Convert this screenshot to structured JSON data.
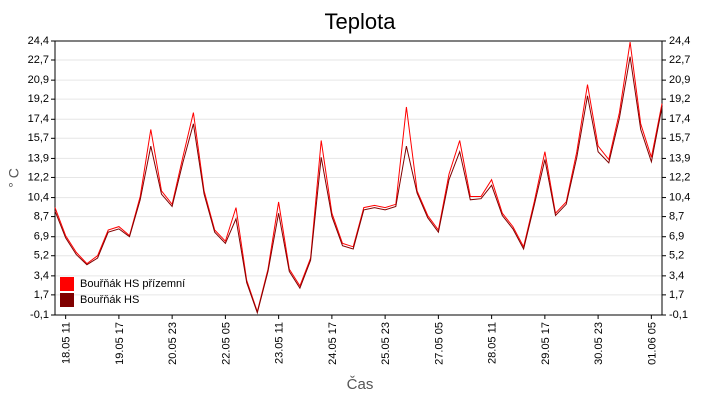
{
  "chart_data": {
    "type": "line",
    "title": "Teplota",
    "xlabel": "Čas",
    "ylabel": "° C",
    "x": [
      "18.05 05",
      "18.05 11",
      "18.05 17",
      "18.05 23",
      "19.05 05",
      "19.05 11",
      "19.05 17",
      "19.05 23",
      "20.05 05",
      "20.05 11",
      "20.05 17",
      "20.05 23",
      "21.05 05",
      "21.05 11",
      "21.05 17",
      "21.05 23",
      "22.05 05",
      "22.05 11",
      "22.05 17",
      "22.05 23",
      "23.05 05",
      "23.05 11",
      "23.05 17",
      "23.05 23",
      "24.05 05",
      "24.05 11",
      "24.05 17",
      "24.05 23",
      "25.05 05",
      "25.05 11",
      "25.05 17",
      "25.05 23",
      "26.05 05",
      "26.05 11",
      "26.05 17",
      "26.05 23",
      "27.05 05",
      "27.05 11",
      "27.05 17",
      "27.05 23",
      "28.05 05",
      "28.05 11",
      "28.05 17",
      "28.05 23",
      "29.05 05",
      "29.05 11",
      "29.05 17",
      "29.05 23",
      "30.05 05",
      "30.05 11",
      "30.05 17",
      "30.05 23",
      "31.05 05",
      "31.05 11",
      "31.05 17",
      "31.05 23",
      "01.06 05",
      "01.06 11"
    ],
    "xticks": [
      "18.05 11",
      "19.05 17",
      "20.05 23",
      "22.05 05",
      "23.05 11",
      "24.05 17",
      "25.05 23",
      "27.05 05",
      "28.05 11",
      "29.05 17",
      "30.05 23",
      "01.06 05"
    ],
    "series": [
      {
        "name": "Bouřňák HS přízemní",
        "color": "#ff0000",
        "values": [
          9.5,
          7,
          5.5,
          4.5,
          5.2,
          7.5,
          7.8,
          7,
          10.5,
          16.5,
          11,
          9.8,
          14,
          18,
          11,
          7.5,
          6.5,
          9.5,
          3,
          0.2,
          4,
          10,
          4,
          2.5,
          5,
          15.5,
          9,
          6.3,
          6,
          9.5,
          9.7,
          9.5,
          9.8,
          18.5,
          11,
          8.8,
          7.5,
          12.5,
          15.5,
          10.5,
          10.5,
          12,
          9,
          7.8,
          6,
          10,
          14.5,
          9,
          10,
          14.5,
          20.5,
          15,
          13.8,
          18,
          24.3,
          17,
          14,
          18.8
        ]
      },
      {
        "name": "Bouřňák HS",
        "color": "#800000",
        "values": [
          9.2,
          6.8,
          5.3,
          4.4,
          5,
          7.3,
          7.6,
          6.9,
          10.2,
          15,
          10.7,
          9.6,
          13.5,
          17,
          10.7,
          7.3,
          6.3,
          8.5,
          2.8,
          0.1,
          3.8,
          9,
          3.8,
          2.3,
          4.8,
          14,
          8.7,
          6.1,
          5.8,
          9.3,
          9.5,
          9.3,
          9.6,
          15,
          10.8,
          8.6,
          7.3,
          12,
          14.5,
          10.2,
          10.3,
          11.5,
          8.8,
          7.6,
          5.8,
          9.7,
          13.8,
          8.8,
          9.8,
          14,
          19.5,
          14.5,
          13.5,
          17.5,
          23,
          16.5,
          13.6,
          18.5
        ]
      }
    ],
    "ylim": [
      -0.1,
      24.4
    ],
    "yticks": [
      {
        "value": -0.1,
        "label": "-0,1"
      },
      {
        "value": 1.7,
        "label": "1,7"
      },
      {
        "value": 3.4,
        "label": "3,4"
      },
      {
        "value": 5.2,
        "label": "5,2"
      },
      {
        "value": 6.9,
        "label": "6,9"
      },
      {
        "value": 8.7,
        "label": "8,7"
      },
      {
        "value": 10.4,
        "label": "10,4"
      },
      {
        "value": 12.2,
        "label": "12,2"
      },
      {
        "value": 13.9,
        "label": "13,9"
      },
      {
        "value": 15.7,
        "label": "15,7"
      },
      {
        "value": 17.4,
        "label": "17,4"
      },
      {
        "value": 19.2,
        "label": "19,2"
      },
      {
        "value": 20.9,
        "label": "20,9"
      },
      {
        "value": 22.7,
        "label": "22,7"
      },
      {
        "value": 24.4,
        "label": "24,4"
      }
    ],
    "grid": true,
    "legend": "lower left"
  }
}
